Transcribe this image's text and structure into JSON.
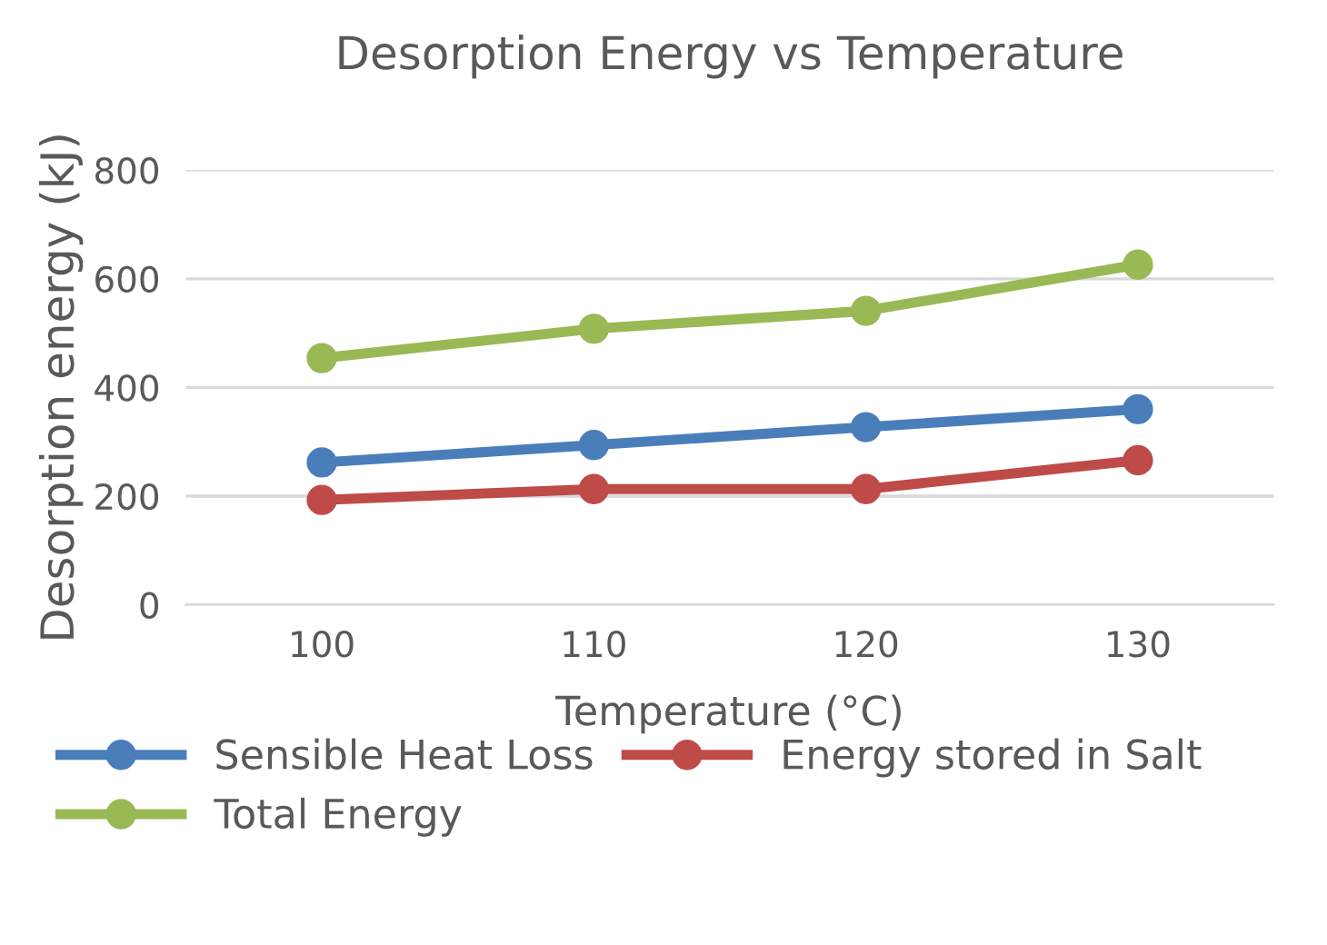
{
  "chart_data": {
    "type": "line",
    "title": "Desorption Energy vs Temperature",
    "xlabel": "Temperature (°C)",
    "ylabel": "Desorption energy (kJ)",
    "categories": [
      "100",
      "110",
      "120",
      "130"
    ],
    "series": [
      {
        "name": "Sensible Heat Loss",
        "color": "#4a7ebb",
        "values": [
          262,
          294,
          327,
          360
        ]
      },
      {
        "name": "Energy stored in Salt",
        "color": "#be4b48",
        "values": [
          193,
          213,
          213,
          266
        ]
      },
      {
        "name": "Total Energy",
        "color": "#98b954",
        "values": [
          454,
          508,
          541,
          626
        ]
      }
    ],
    "ylim": [
      0,
      800
    ],
    "yticks": [
      0,
      200,
      400,
      600,
      800
    ],
    "grid": "y",
    "legend": "bottom",
    "marker": "circle",
    "line_style": "solid"
  }
}
